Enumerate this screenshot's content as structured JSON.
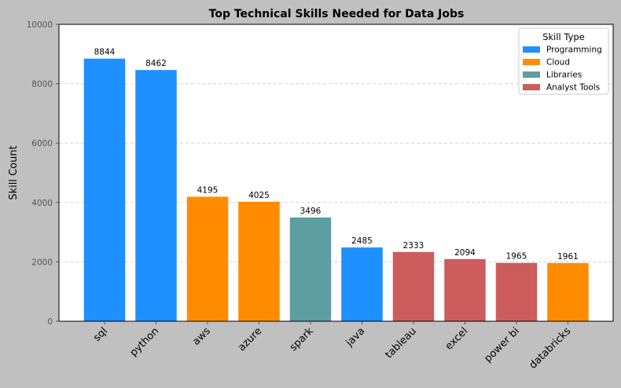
{
  "colors": {
    "figure_bg": "#c0c0c0",
    "plot_bg": "#ffffff",
    "grid": "#d3d3d3",
    "Programming": "#1e90ff",
    "Cloud": "#ff8c00",
    "Libraries": "#5f9ea0",
    "Analyst Tools": "#cd5c5c"
  },
  "chart_data": {
    "type": "bar",
    "title": "Top Technical Skills Needed for Data Jobs",
    "xlabel": "",
    "ylabel": "Skill Count",
    "ylim": [
      0,
      10000
    ],
    "yticks": [
      0,
      2000,
      4000,
      6000,
      8000,
      10000
    ],
    "grid": "y-dashed",
    "categories": [
      "sql",
      "python",
      "aws",
      "azure",
      "spark",
      "java",
      "tableau",
      "excel",
      "power bi",
      "databricks"
    ],
    "values": [
      8844,
      8462,
      4195,
      4025,
      3496,
      2485,
      2333,
      2094,
      1965,
      1961
    ],
    "groups": [
      "Programming",
      "Programming",
      "Cloud",
      "Cloud",
      "Libraries",
      "Programming",
      "Analyst Tools",
      "Analyst Tools",
      "Analyst Tools",
      "Cloud"
    ],
    "data_labels": [
      "8844",
      "8462",
      "4195",
      "4025",
      "3496",
      "2485",
      "2333",
      "2094",
      "1965",
      "1961"
    ],
    "legend": {
      "title": "Skill Type",
      "placement": "top-right",
      "entries": [
        "Programming",
        "Cloud",
        "Libraries",
        "Analyst Tools"
      ]
    }
  }
}
